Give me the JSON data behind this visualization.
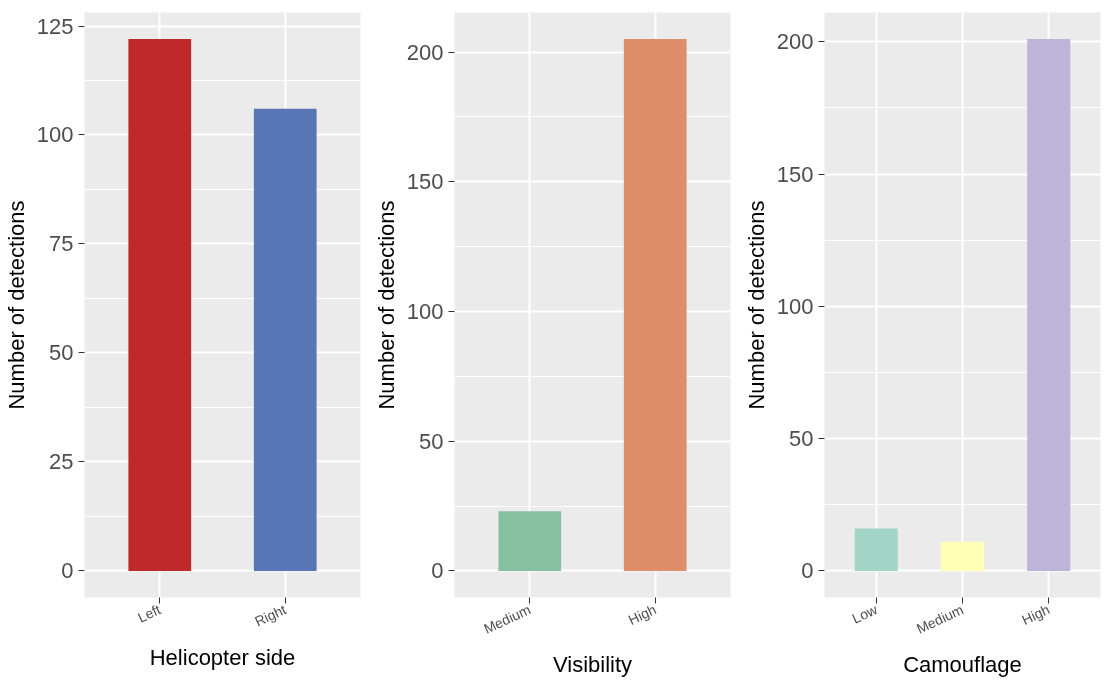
{
  "chart_data": [
    {
      "type": "bar",
      "xlabel": "Helicopter side",
      "ylabel": "Number of detections",
      "categories": [
        "Left",
        "Right"
      ],
      "values": [
        122,
        106
      ],
      "colors": [
        "#c0292b",
        "#5876b5"
      ],
      "ylim": [
        -6.1,
        128.1
      ],
      "yticks": [
        0,
        25,
        50,
        75,
        100,
        125
      ],
      "grid": true
    },
    {
      "type": "bar",
      "xlabel": "Visibility",
      "ylabel": "Number of detections",
      "categories": [
        "Medium",
        "High"
      ],
      "values": [
        23,
        205
      ],
      "colors": [
        "#86c0a0",
        "#e08e69"
      ],
      "ylim": [
        -10.25,
        215.25
      ],
      "yticks": [
        0,
        50,
        100,
        150,
        200
      ],
      "grid": true
    },
    {
      "type": "bar",
      "xlabel": "Camouflage",
      "ylabel": "Number of detections",
      "categories": [
        "Low",
        "Medium",
        "High"
      ],
      "values": [
        16,
        11,
        201
      ],
      "colors": [
        "#a3d5c6",
        "#ffffb5",
        "#bcb5d9"
      ],
      "ylim": [
        -10.05,
        211.05
      ],
      "yticks": [
        0,
        50,
        100,
        150,
        200
      ],
      "grid": true
    }
  ]
}
